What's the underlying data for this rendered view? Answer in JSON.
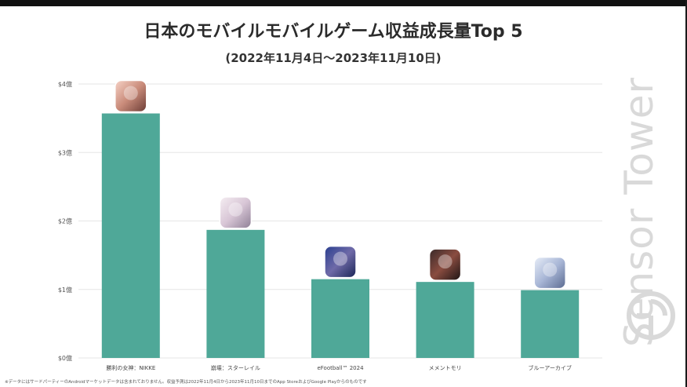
{
  "header": {
    "title": "日本のモバイルモバイルゲーム収益成長量Top 5",
    "subtitle": "(2022年11月4日〜2023年11月10日)"
  },
  "watermark": {
    "text": "Sensor Tower",
    "icon": "sensor-tower-logo-icon"
  },
  "footnote": "※データにはサードパーティーのAndroidマーケットデータは含まれておりません。収益予測は2022年11月4日から2023年11月10日までのApp StoreおよびGoogle Playからのものです",
  "colors": {
    "bar": "#4fa898",
    "grid": "#e6e6e6",
    "title": "#2b2b2b"
  },
  "chart_data": {
    "type": "bar",
    "title": "日本のモバイルモバイルゲーム収益成長量Top 5",
    "subtitle": "(2022年11月4日〜2023年11月10日)",
    "xlabel": "",
    "ylabel": "",
    "ylim": [
      0,
      4
    ],
    "yticks": [
      0,
      1,
      2,
      3,
      4
    ],
    "ytick_labels": [
      "$0億",
      "$1億",
      "$2億",
      "$3億",
      "$4億"
    ],
    "grid": true,
    "categories": [
      "勝利の女神：NIKKE",
      "崩壊：スターレイル",
      "eFootball™ 2024",
      "メメントモリ",
      "ブルーアーカイブ"
    ],
    "values": [
      3.57,
      1.87,
      1.15,
      1.11,
      0.99
    ],
    "icons": [
      "nikke-app-icon",
      "star-rail-app-icon",
      "efootball-app-icon",
      "memento-mori-app-icon",
      "blue-archive-app-icon"
    ]
  }
}
